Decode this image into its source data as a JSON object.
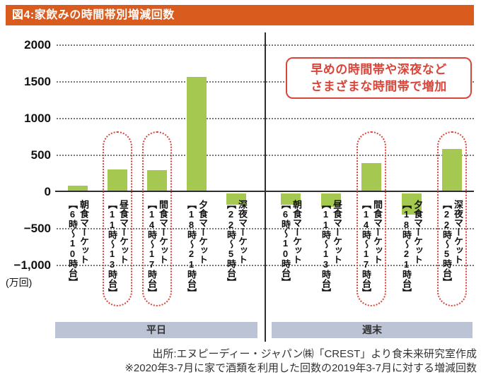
{
  "title": "図4:家飲みの時間帯別増減回数",
  "annotation": {
    "line1": "早めの時間帯や深夜など",
    "line2": "さまざまな時間帯で増加"
  },
  "source": {
    "line1": "出所:エヌピーディー・ジャパン㈱「CREST」より食未来研究室作成",
    "line2": "※2020年3-7月に家で酒類を利用した回数の2019年3-7月に対する増減回数"
  },
  "colors": {
    "title_bg": "#D95C1E",
    "bar": "#A5C851",
    "highlight_red": "#D8453A",
    "band_bg": "#BCC3D4",
    "grid": "#787878",
    "axis": "#2e2e2e"
  },
  "chart_data": {
    "type": "bar",
    "title": "図4:家飲みの時間帯別増減回数",
    "unit_label": "(万回)",
    "ylabel": "増減回数(万回)",
    "ylim": [
      -1000,
      2000
    ],
    "grid": true,
    "yticks": [
      {
        "label": "2000",
        "value": 2000
      },
      {
        "label": "1500",
        "value": 1500
      },
      {
        "label": "1000",
        "value": 1000
      },
      {
        "label": "500",
        "value": 500
      },
      {
        "label": "0",
        "value": 0
      },
      {
        "label": "−500",
        "value": -500
      },
      {
        "label": "−1,000",
        "value": -1000
      }
    ],
    "categories": [
      {
        "market": "朝食マーケット",
        "time": "【6時〜10時台】"
      },
      {
        "market": "昼食マーケット",
        "time": "【11時〜13時台】"
      },
      {
        "market": "間食マーケット",
        "time": "【14時〜17時台】"
      },
      {
        "market": "夕食マーケット",
        "time": "【18時〜21時台】"
      },
      {
        "market": "深夜マーケット",
        "time": "【22時〜5時台】"
      }
    ],
    "groups": [
      {
        "label": "平日",
        "values": [
          90,
          310,
          300,
          1570,
          -150
        ],
        "highlighted_indices": [
          1,
          2
        ]
      },
      {
        "label": "週末",
        "values": [
          -150,
          -180,
          390,
          -290,
          590
        ],
        "highlighted_indices": [
          2,
          4
        ]
      }
    ]
  }
}
